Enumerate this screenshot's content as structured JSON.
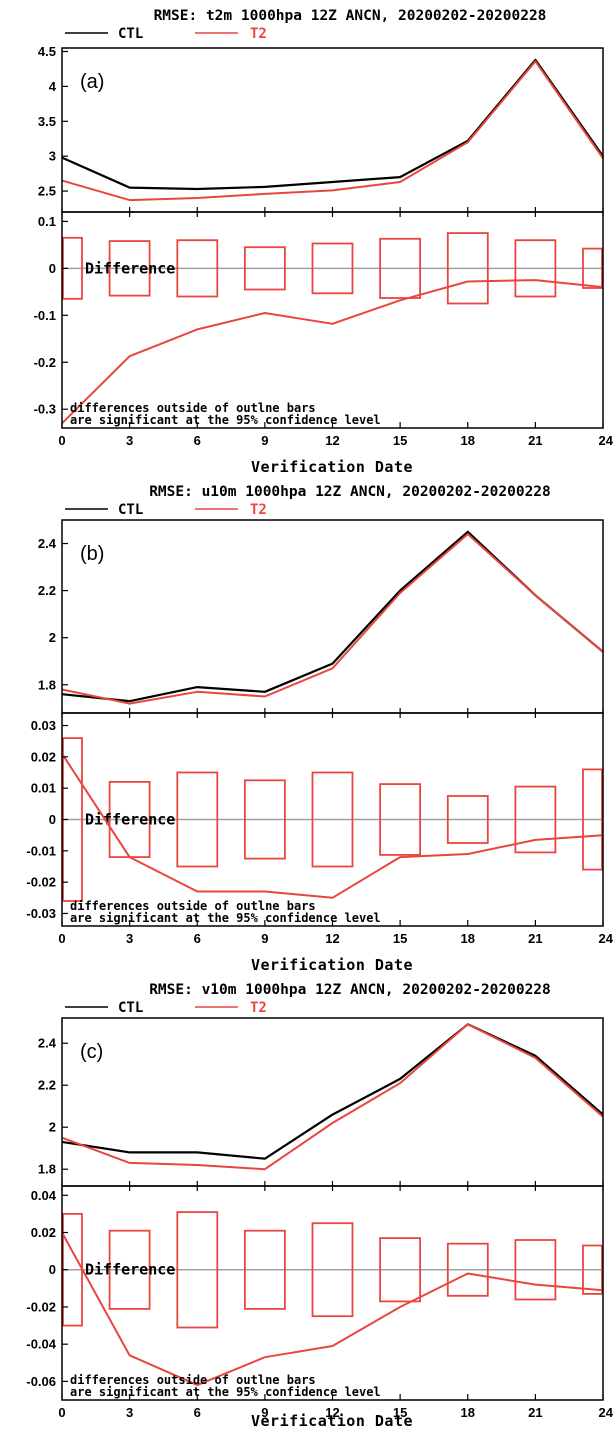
{
  "colors": {
    "ctl": "#000000",
    "t2": "#e8463e",
    "zero": "#a0a0a0",
    "box": "#e8463e"
  },
  "chart_data": [
    {
      "type": "line",
      "title": "RMSE: t2m 1000hpa 12Z ANCN, 20200202-20200228",
      "panel_label": "(a)",
      "x": [
        0,
        3,
        6,
        9,
        12,
        15,
        18,
        21,
        24
      ],
      "xlabel": "Verification Date",
      "xticks": [
        "0",
        "3",
        "6",
        "9",
        "12",
        "15",
        "18",
        "21",
        "24"
      ],
      "xlim": [
        0,
        24
      ],
      "top": {
        "ylim": [
          2.2,
          4.55
        ],
        "yticks": [
          2.5,
          3,
          3.5,
          4,
          4.5
        ],
        "ytick_labels": [
          "2.5",
          "3",
          "3.5",
          "4",
          "4.5"
        ],
        "series": [
          {
            "name": "CTL",
            "values": [
              2.98,
              2.55,
              2.53,
              2.56,
              2.63,
              2.7,
              3.22,
              4.38,
              3.0
            ]
          },
          {
            "name": "T2",
            "values": [
              2.65,
              2.37,
              2.4,
              2.46,
              2.51,
              2.63,
              3.2,
              4.36,
              2.97
            ]
          }
        ]
      },
      "bottom": {
        "ylim": [
          -0.34,
          0.12
        ],
        "yticks": [
          0.1,
          0,
          -0.1,
          -0.2,
          -0.3
        ],
        "ytick_labels": [
          "0.1",
          "0",
          "-0.1",
          "-0.2",
          "-0.3"
        ],
        "difference_label": "Difference",
        "difference": [
          -0.33,
          -0.187,
          -0.13,
          -0.095,
          -0.118,
          -0.068,
          -0.028,
          -0.025,
          -0.04
        ],
        "bars": [
          0.065,
          0.058,
          0.06,
          0.045,
          0.053,
          0.063,
          0.075,
          0.06,
          0.042
        ],
        "note": [
          "differences outside of outlne bars",
          "are significant at the 95% confidence level"
        ]
      }
    },
    {
      "type": "line",
      "title": "RMSE: u10m 1000hpa 12Z ANCN, 20200202-20200228",
      "panel_label": "(b)",
      "x": [
        0,
        3,
        6,
        9,
        12,
        15,
        18,
        21,
        24
      ],
      "xlabel": "Verification Date",
      "xticks": [
        "0",
        "3",
        "6",
        "9",
        "12",
        "15",
        "18",
        "21",
        "24"
      ],
      "xlim": [
        0,
        24
      ],
      "top": {
        "ylim": [
          1.68,
          2.5
        ],
        "yticks": [
          1.8,
          2,
          2.2,
          2.4
        ],
        "ytick_labels": [
          "1.8",
          "2",
          "2.2",
          "2.4"
        ],
        "series": [
          {
            "name": "CTL",
            "values": [
              1.76,
              1.73,
              1.79,
              1.77,
              1.89,
              2.2,
              2.45,
              2.18,
              1.94
            ]
          },
          {
            "name": "T2",
            "values": [
              1.78,
              1.72,
              1.77,
              1.75,
              1.87,
              2.19,
              2.44,
              2.18,
              1.94
            ]
          }
        ]
      },
      "bottom": {
        "ylim": [
          -0.034,
          0.034
        ],
        "yticks": [
          0.03,
          0.02,
          0.01,
          0,
          -0.01,
          -0.02,
          -0.03
        ],
        "ytick_labels": [
          "0.03",
          "0.02",
          "0.01",
          "0",
          "-0.01",
          "-0.02",
          "-0.03"
        ],
        "difference_label": "Difference",
        "difference": [
          0.021,
          -0.012,
          -0.023,
          -0.023,
          -0.025,
          -0.012,
          -0.011,
          -0.0065,
          -0.005
        ],
        "bars": [
          0.026,
          0.012,
          0.015,
          0.0125,
          0.015,
          0.0113,
          0.0075,
          0.0105,
          0.016
        ],
        "note": [
          "differences outside of outlne bars",
          "are significant at the 95% confidence level"
        ]
      }
    },
    {
      "type": "line",
      "title": "RMSE: v10m 1000hpa 12Z ANCN, 20200202-20200228",
      "panel_label": "(c)",
      "x": [
        0,
        3,
        6,
        9,
        12,
        15,
        18,
        21,
        24
      ],
      "xlabel": "Verification Date",
      "xticks": [
        "0",
        "3",
        "6",
        "9",
        "12",
        "15",
        "18",
        "21",
        "24"
      ],
      "xlim": [
        0,
        24
      ],
      "top": {
        "ylim": [
          1.72,
          2.52
        ],
        "yticks": [
          1.8,
          2,
          2.2,
          2.4
        ],
        "ytick_labels": [
          "1.8",
          "2",
          "2.2",
          "2.4"
        ],
        "series": [
          {
            "name": "CTL",
            "values": [
              1.93,
              1.88,
              1.88,
              1.85,
              2.06,
              2.23,
              2.49,
              2.34,
              2.06
            ]
          },
          {
            "name": "T2",
            "values": [
              1.95,
              1.83,
              1.82,
              1.8,
              2.02,
              2.21,
              2.49,
              2.33,
              2.05
            ]
          }
        ]
      },
      "bottom": {
        "ylim": [
          -0.07,
          0.045
        ],
        "yticks": [
          0.04,
          0.02,
          0,
          -0.02,
          -0.04,
          -0.06
        ],
        "ytick_labels": [
          "0.04",
          "0.02",
          "0",
          "-0.02",
          "-0.04",
          "-0.06"
        ],
        "difference_label": "Difference",
        "difference": [
          0.02,
          -0.046,
          -0.062,
          -0.047,
          -0.041,
          -0.02,
          -0.002,
          -0.008,
          -0.011
        ],
        "bars": [
          0.03,
          0.021,
          0.031,
          0.021,
          0.025,
          0.017,
          0.014,
          0.016,
          0.013
        ],
        "note": [
          "differences outside of outlne bars",
          "are significant at the 95% confidence level"
        ]
      }
    }
  ]
}
